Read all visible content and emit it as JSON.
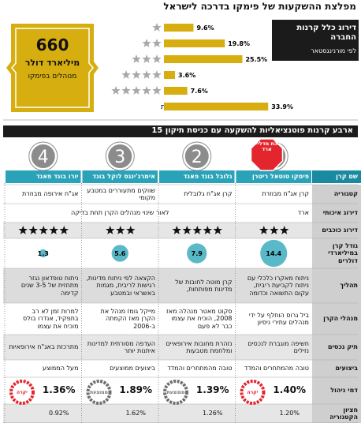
{
  "title": "מפלצת ההשקעות של פימקו בדרכה לישראל",
  "chart_data": {
    "type": "bar",
    "title": "דירוג כלל קרנות החברה",
    "subtitle": "לפי מורנינגסטאר",
    "categories": [
      1,
      2,
      3,
      4,
      5,
      "לא מדורגות"
    ],
    "values": [
      9.6,
      19.8,
      25.5,
      3.6,
      7.6,
      33.9
    ],
    "value_labels": [
      "9.6%",
      "19.8%",
      "25.5%",
      "3.6%",
      "7.6%",
      "33.9%"
    ],
    "color": "#d6ae0f",
    "star_color": "#a8a8a8"
  },
  "assets": {
    "amount": "660",
    "unit": "מיליארד דולר",
    "caption": "מנוהלים בפימקו"
  },
  "section_title": "ארבע קרנות פוטנציאליות להשקעה עם כניסת תיקון 15",
  "badge": "זוכת מדליית ארד",
  "row_labels": {
    "name": "שם קרן",
    "category": "קטגוריה",
    "qualitative": "דירוג איכותי",
    "stars": "דירוג כוכבים",
    "size": "גודל קרן במיליארדי דולרים",
    "process": "תהליך",
    "managers": "מנהלי הקרן",
    "portfolio": "תיק נכסים",
    "performance": "ביצועים",
    "fee": "דמי ניהול",
    "median": "חציון הקטגוריה"
  },
  "qualitative_rating": [
    "ארד",
    "לאור שינוי מנהלים הקרן תחת בדיקה"
  ],
  "funds": [
    {
      "number": 1,
      "name": "פימקו טוטאל ריטרן",
      "category": "קרן אג\"ח מבוזרת",
      "stars": 3,
      "size": 14.4,
      "process": "ניתוח מאקרו כלכלי עם ניתוח לקביעת ריבית, עקום התשואה וכדומה",
      "managers": "ביל גרוס הוחלף על ידי מנהלים עתירי ניסיון",
      "portfolio": "חשיפה מוגברת לנכסים נזילים",
      "performance": "טובה מהמתחרים והמדד",
      "fee": "1.40%",
      "fee_rating": "יקרה",
      "gauge_color": "#e3262e",
      "median": "1.20%"
    },
    {
      "number": 2,
      "name": "גלובל בונד פאנד",
      "category": "קרן אג\"ח גלובלית",
      "stars": 5,
      "size": 7.9,
      "process": "קרן מוטה לחובות של מדינות מפותחות,",
      "managers": "סקוט מאטר מנהלה מאז 2008, הוכיח את עצמו כבר לא פעם",
      "portfolio": "נזהרת מחובות אירופאיים ומלחמת מטבעות",
      "performance": "טובה מהמתחרים והמדד",
      "fee": "1.39%",
      "fee_rating": "ממוצעת",
      "gauge_color": "#6e6e6e",
      "median": "1.26%"
    },
    {
      "number": 3,
      "name": "אימרג'ינגס לוקל בונד",
      "category": "שווקים מתעוררים במטבע מקומי",
      "stars": 3,
      "size": 5.6,
      "process": "הקצאה לפי ניתוח מדינות, רגישות לריבית, מגמות באשראי ובמטבע",
      "managers": "מייקל גומז מנהל את הקרן מאז הקמתה ב-2006",
      "portfolio": "העדפה מסורתית למדינות איתנות יותר",
      "performance": "ביצועים ממוצעים",
      "fee": "1.89%",
      "fee_rating": "ממוצעת",
      "gauge_color": "#6e6e6e",
      "median": "1.62%"
    },
    {
      "number": 4,
      "name": "יורו בונד פאנד",
      "category": "אג\"ח אירופה מבוזרת",
      "stars": 5,
      "size": 1.3,
      "process": "ניתוח טופדאון נגזר מתחזית של 3-5 שנים קדימה",
      "managers": "למרות זמן לא רב בתפקיד, אנדרו בולס מוכיח את עצמו",
      "portfolio": "מתרכזת באג\"ח אירופאיות",
      "performance": "מעל הממוצע",
      "fee": "1.36%",
      "fee_rating": "יקרה",
      "gauge_color": "#e3262e",
      "median": "0.92%"
    }
  ]
}
